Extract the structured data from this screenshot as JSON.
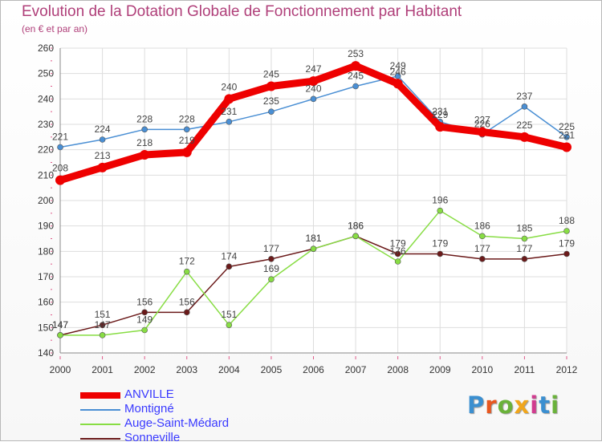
{
  "chart_data": {
    "type": "line",
    "title": "Evolution de la Dotation Globale de Fonctionnement par Habitant",
    "subtitle": "(en € et par an)",
    "x": [
      "2000",
      "2001",
      "2002",
      "2003",
      "2004",
      "2005",
      "2006",
      "2007",
      "2008",
      "2009",
      "2010",
      "2011",
      "2012"
    ],
    "ylim": [
      140,
      260
    ],
    "yticks": [
      "140",
      "150",
      "160",
      "170",
      "180",
      "190",
      "200",
      "210",
      "220",
      "230",
      "240",
      "250",
      "260"
    ],
    "grid": true,
    "legend_placement": "bottom-left",
    "series": [
      {
        "name": "ANVILLE",
        "color": "#ee0000",
        "values": [
          208,
          213,
          218,
          219,
          240,
          245,
          247,
          253,
          246,
          229,
          227,
          225,
          221
        ]
      },
      {
        "name": "Montigné",
        "color": "#4a8fd4",
        "values": [
          221,
          224,
          228,
          228,
          231,
          235,
          240,
          245,
          249,
          231,
          226,
          237,
          225
        ]
      },
      {
        "name": "Auge-Saint-Médard",
        "color": "#88dd44",
        "values": [
          147,
          147,
          149,
          172,
          151,
          169,
          181,
          186,
          176,
          196,
          186,
          185,
          188
        ]
      },
      {
        "name": "Sonneville",
        "color": "#6b1a1a",
        "values": [
          147,
          151,
          156,
          156,
          174,
          177,
          181,
          186,
          179,
          179,
          177,
          177,
          179
        ]
      }
    ]
  },
  "logo": {
    "text": "Proxiti",
    "letter_colors": [
      "#3b8fd0",
      "#e8571f",
      "#6ab23a",
      "#f0a61c",
      "#d13b8f",
      "#3b8fd0",
      "#6ab23a"
    ]
  }
}
